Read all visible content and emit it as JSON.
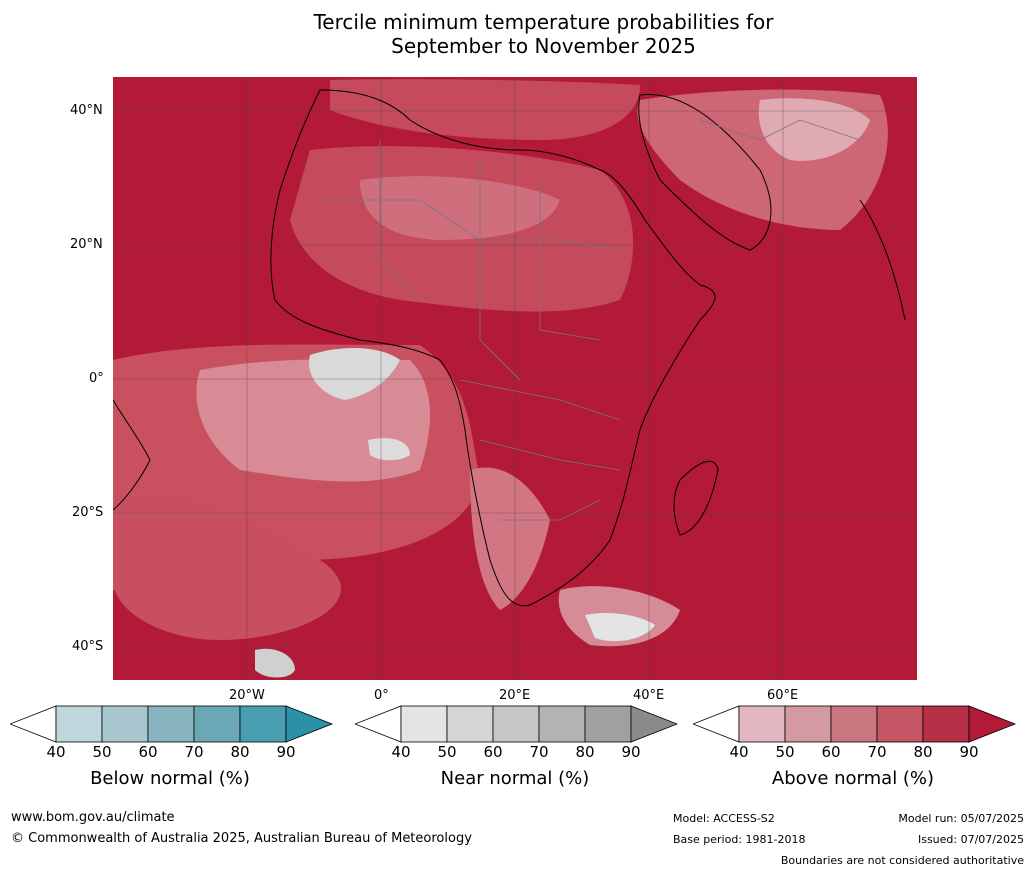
{
  "title_line1": "Tercile minimum temperature probabilities for",
  "title_line2": "September to November 2025",
  "lat_labels": [
    "40°N",
    "20°N",
    "0°",
    "20°S",
    "40°S"
  ],
  "lon_labels": [
    "20°W",
    "0°",
    "20°E",
    "40°E",
    "60°E"
  ],
  "colorbars": [
    {
      "label": "Below normal (%)",
      "ticks": [
        "40",
        "50",
        "60",
        "70",
        "80",
        "90"
      ],
      "colors": [
        "#ffffff",
        "#bfd6dd",
        "#a7c6cd",
        "#89b5c1",
        "#6aa8b6",
        "#499fb1",
        "#2a91a8"
      ]
    },
    {
      "label": "Near normal (%)",
      "ticks": [
        "40",
        "50",
        "60",
        "70",
        "80",
        "90"
      ],
      "colors": [
        "#ffffff",
        "#e4e4e4",
        "#d5d5d5",
        "#c6c6c6",
        "#b3b3b3",
        "#a0a0a0",
        "#8a8a8a"
      ]
    },
    {
      "label": "Above normal (%)",
      "ticks": [
        "40",
        "50",
        "60",
        "70",
        "80",
        "90"
      ],
      "colors": [
        "#ffffff",
        "#e3b7bf",
        "#d49aa3",
        "#c97680",
        "#c45565",
        "#b82f48",
        "#b31a37"
      ]
    }
  ],
  "footer": {
    "website": "www.bom.gov.au/climate",
    "copyright": "© Commonwealth of Australia 2025, Australian Bureau of Meteorology",
    "model": "Model: ACCESS-S2",
    "base_period": "Base period: 1981-2018",
    "model_run": "Model run: 05/07/2025",
    "issued": "Issued: 07/07/2025",
    "disclaimer": "Boundaries are not considered authoritative"
  },
  "colors": {
    "above_90": "#b31a37",
    "above_80": "#c02f4a",
    "above_70": "#c94f60",
    "above_60": "#d07382",
    "above_50": "#e0a9b1",
    "near": "#d8d8d8"
  }
}
